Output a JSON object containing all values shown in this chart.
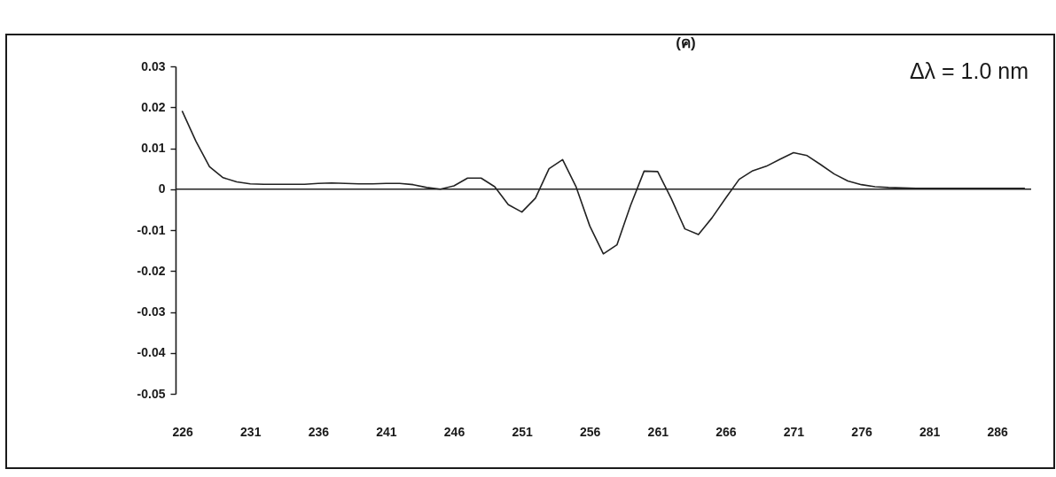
{
  "chart_data": {
    "type": "line",
    "title": "(ค)",
    "annotations": [
      "Δλ = 1.0 nm"
    ],
    "x": [
      226,
      227,
      228,
      229,
      230,
      231,
      232,
      233,
      234,
      235,
      236,
      237,
      238,
      239,
      240,
      241,
      242,
      243,
      244,
      245,
      246,
      247,
      248,
      249,
      250,
      251,
      252,
      253,
      254,
      255,
      256,
      257,
      258,
      259,
      260,
      261,
      262,
      263,
      264,
      265,
      266,
      267,
      268,
      269,
      270,
      271,
      272,
      273,
      274,
      275,
      276,
      277,
      278,
      279,
      280,
      281,
      282,
      283,
      284,
      285,
      286,
      287,
      288
    ],
    "series": [
      {
        "color": "#222222",
        "values": [
          0.019,
          0.0117,
          0.0055,
          0.0028,
          0.0018,
          0.0013,
          0.0012,
          0.0012,
          0.0012,
          0.0012,
          0.0014,
          0.0015,
          0.0014,
          0.0013,
          0.0013,
          0.0014,
          0.0014,
          0.0011,
          0.0004,
          0.0,
          0.0008,
          0.0027,
          0.0027,
          0.0006,
          -0.0038,
          -0.0056,
          -0.0022,
          0.005,
          0.0072,
          0.0005,
          -0.009,
          -0.0158,
          -0.0136,
          -0.004,
          0.0044,
          0.0043,
          -0.0023,
          -0.0097,
          -0.0111,
          -0.007,
          -0.0022,
          0.0024,
          0.0045,
          0.0056,
          0.0073,
          0.0089,
          0.0082,
          0.006,
          0.0037,
          0.002,
          0.0011,
          0.0006,
          0.0004,
          0.0003,
          0.0002,
          0.0002,
          0.0002,
          0.0002,
          0.0002,
          0.0002,
          0.0002,
          0.0002,
          0.0002
        ]
      }
    ],
    "xlim": [
      225.5,
      288.5
    ],
    "xticks": [
      226,
      231,
      236,
      241,
      246,
      251,
      256,
      261,
      266,
      271,
      276,
      281,
      286
    ],
    "ylim": [
      -0.05,
      0.03
    ],
    "yticks": [
      0.03,
      0.02,
      0.01,
      0,
      -0.01,
      -0.02,
      -0.03,
      -0.04,
      -0.05
    ],
    "ref_lines": [
      {
        "axis": "y",
        "value": 0,
        "color": "#222222"
      }
    ]
  }
}
